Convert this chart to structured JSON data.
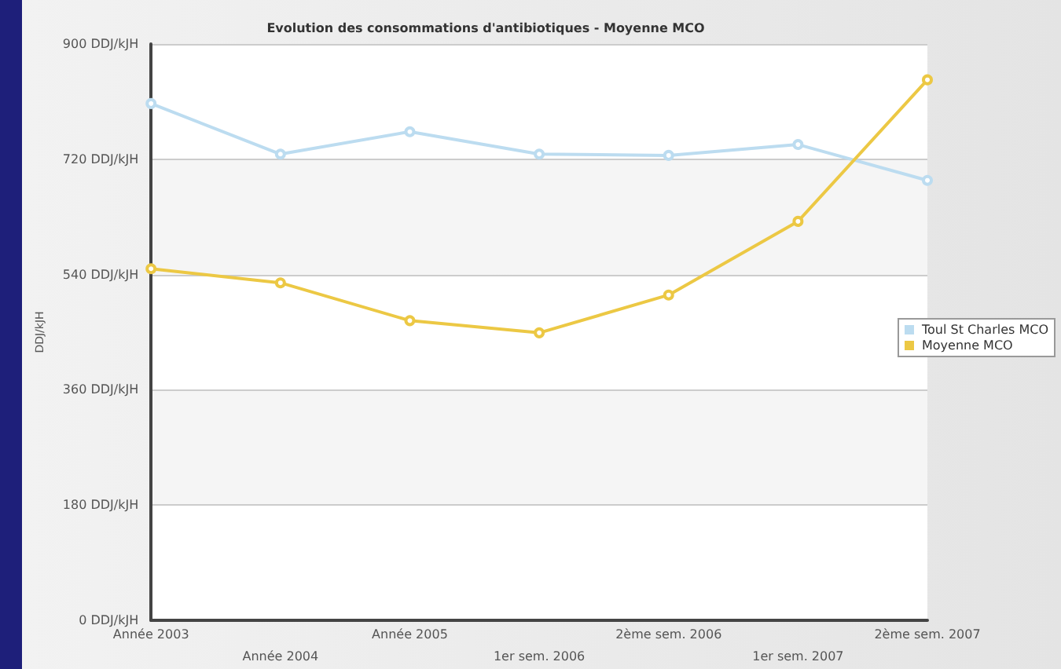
{
  "chart_data": {
    "type": "line",
    "title": "Evolution des consommations d'antibiotiques - Moyenne MCO",
    "ylabel": "DDJ/kJH",
    "categories": [
      "Année 2003",
      "Année 2004",
      "Année 2005",
      "1er sem. 2006",
      "2ème sem. 2006",
      "1er sem. 2007",
      "2ème sem. 2007"
    ],
    "series": [
      {
        "name": "Toul St Charles MCO",
        "color": "#bcdcf0",
        "values": [
          807,
          728,
          763,
          728,
          726,
          743,
          687
        ]
      },
      {
        "name": "Moyenne MCO",
        "color": "#ecc844",
        "values": [
          549,
          527,
          468,
          449,
          508,
          623,
          844
        ]
      }
    ],
    "ylim": [
      0,
      900
    ],
    "yticks": [
      {
        "value": 0,
        "label": "0 DDJ/kJH"
      },
      {
        "value": 180,
        "label": "180 DDJ/kJH"
      },
      {
        "value": 360,
        "label": "360 DDJ/kJH"
      },
      {
        "value": 540,
        "label": "540 DDJ/kJH"
      },
      {
        "value": 720,
        "label": "720 DDJ/kJH"
      },
      {
        "value": 900,
        "label": "900 DDJ/kJH"
      }
    ],
    "grid": "y",
    "legend": "right",
    "marker": "circle",
    "line_style": "solid"
  }
}
